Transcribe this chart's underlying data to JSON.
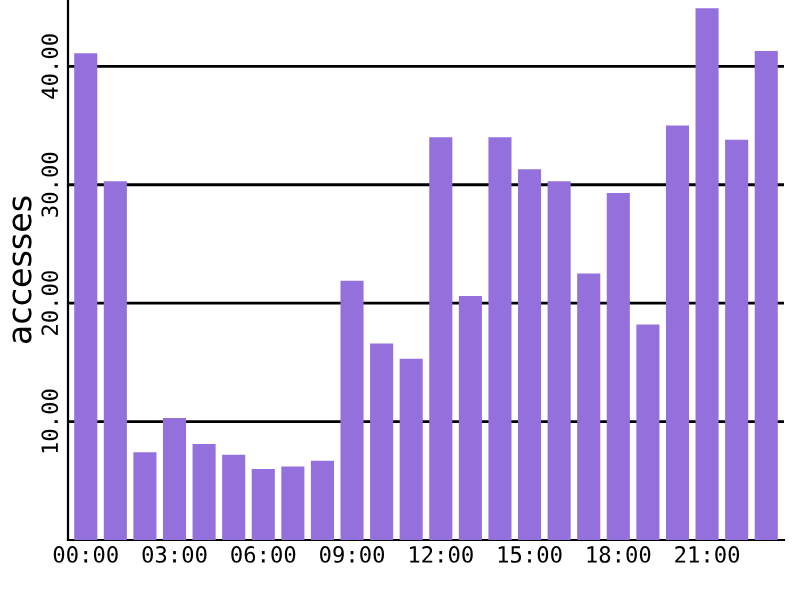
{
  "chart_data": {
    "type": "bar",
    "ylabel": "accesses",
    "categories": [
      "00:00",
      null,
      null,
      "03:00",
      null,
      null,
      "06:00",
      null,
      null,
      "09:00",
      null,
      null,
      "12:00",
      null,
      null,
      "15:00",
      null,
      null,
      "18:00",
      null,
      null,
      "21:00",
      null,
      null
    ],
    "values": [
      41.1,
      30.3,
      7.4,
      10.3,
      8.1,
      7.2,
      6.0,
      6.2,
      6.7,
      21.9,
      16.6,
      15.3,
      34.0,
      20.6,
      34.0,
      31.3,
      30.3,
      22.5,
      29.3,
      18.2,
      35.0,
      44.9,
      33.8,
      41.3
    ],
    "color": "#9370db",
    "ylim": [
      0,
      45.6
    ],
    "yticks": [
      {
        "value": 10,
        "label": "10.00"
      },
      {
        "value": 20,
        "label": "20.00"
      },
      {
        "value": 30,
        "label": "30.00"
      },
      {
        "value": 40,
        "label": "40.00"
      }
    ],
    "grid": "y"
  }
}
